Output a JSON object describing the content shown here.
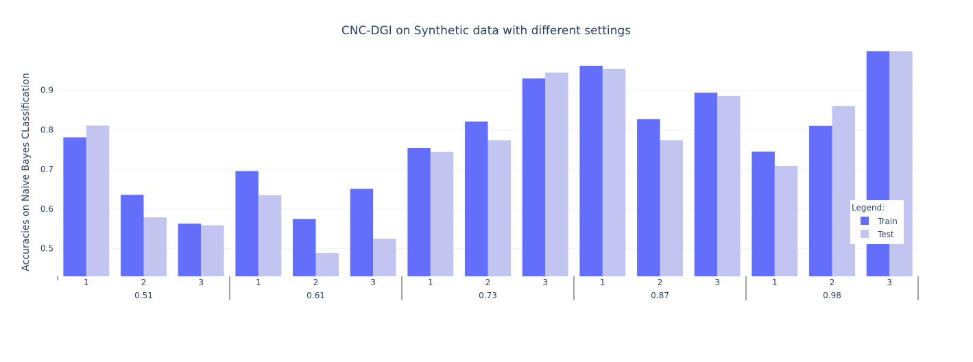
{
  "chart_data": {
    "type": "bar",
    "title": "CNC-DGI on Synthetic data with different settings",
    "xlabel": "",
    "ylabel": "Accuracies on Naive Bayes CLassification",
    "ylim": [
      0.43,
      1.0
    ],
    "yticks": [
      "0.5",
      "0.6",
      "0.7",
      "0.8",
      "0.9"
    ],
    "groups": [
      "0.51",
      "0.61",
      "0.73",
      "0.87",
      "0.98"
    ],
    "subcategories": [
      "1",
      "2",
      "3"
    ],
    "series": [
      {
        "name": "Train",
        "color": "#636efa",
        "values": [
          0.781,
          0.636,
          0.563,
          0.696,
          0.575,
          0.651,
          0.754,
          0.821,
          0.93,
          0.962,
          0.827,
          0.894,
          0.745,
          0.81,
          0.999
        ]
      },
      {
        "name": "Test",
        "color": "#c3c5f1",
        "values": [
          0.811,
          0.579,
          0.559,
          0.635,
          0.489,
          0.525,
          0.744,
          0.774,
          0.945,
          0.954,
          0.774,
          0.886,
          0.709,
          0.86,
          0.999
        ]
      }
    ],
    "grid": true,
    "legend": {
      "title": "Legend:",
      "position": "right"
    }
  }
}
